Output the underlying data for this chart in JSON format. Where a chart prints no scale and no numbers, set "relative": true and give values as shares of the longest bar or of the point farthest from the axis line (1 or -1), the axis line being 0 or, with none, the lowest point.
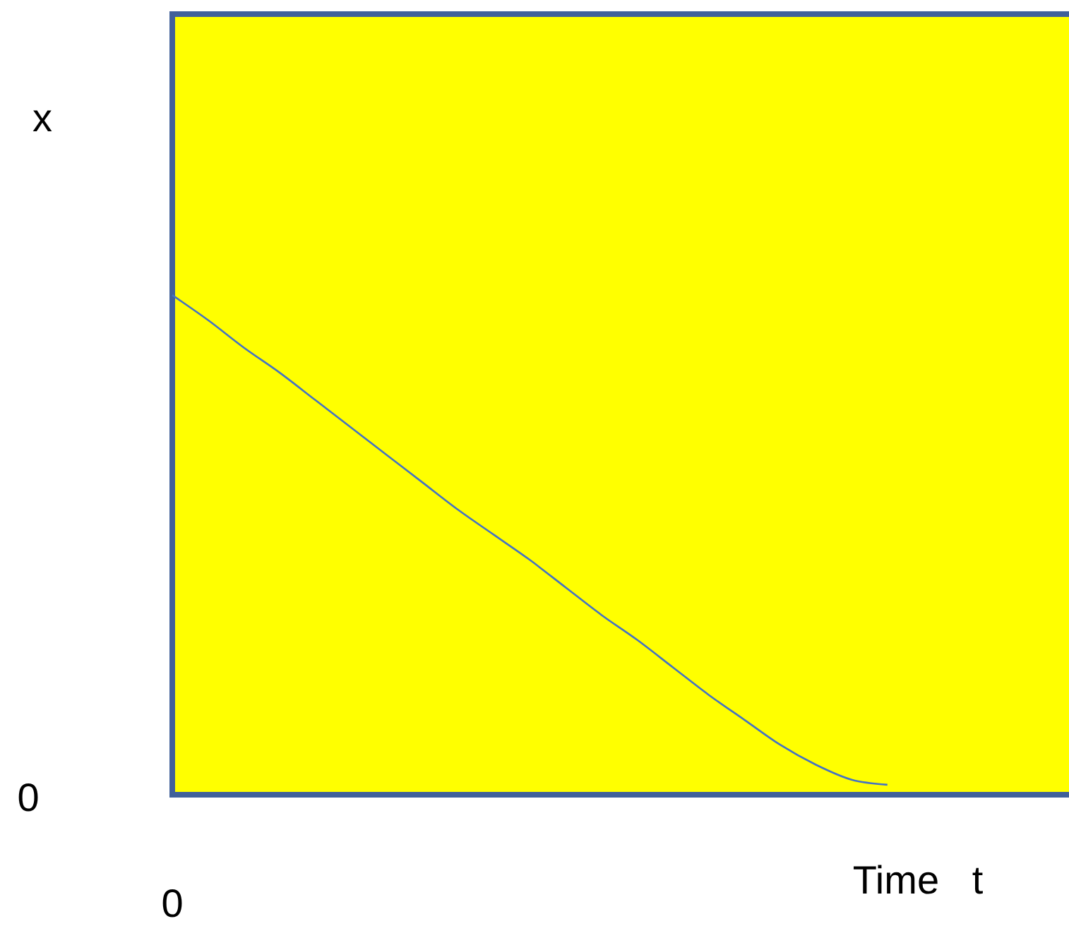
{
  "chart_data": {
    "type": "line",
    "relative": true,
    "ylabel": "x",
    "xlabel": "Time   t",
    "annotations": [
      "0",
      "0"
    ],
    "categories": [
      null,
      null,
      null,
      null,
      null,
      null,
      null,
      null,
      null,
      null,
      null,
      null,
      null,
      null,
      null,
      null,
      null,
      null,
      null,
      null,
      null,
      null,
      null,
      null,
      null,
      null
    ],
    "series": [
      {
        "color": "#4472c4",
        "values": [
          1.0,
          0.95,
          0.895,
          0.845,
          0.79,
          0.735,
          0.68,
          0.625,
          0.57,
          0.52,
          0.47,
          0.415,
          0.36,
          0.31,
          0.255,
          0.2,
          0.15,
          0.1,
          0.06,
          0.03,
          0.02,
          null,
          null,
          null,
          null,
          null
        ]
      }
    ]
  }
}
